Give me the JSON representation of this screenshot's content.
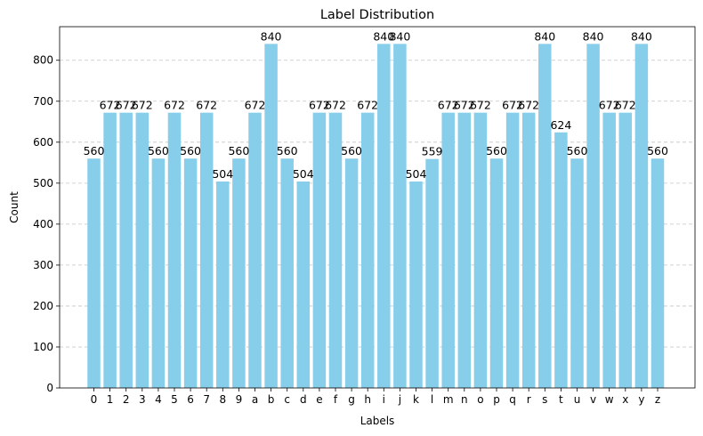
{
  "chart_data": {
    "type": "bar",
    "title": "Label Distribution",
    "xlabel": "Labels",
    "ylabel": "Count",
    "ylim": [
      0,
      882
    ],
    "yticks": [
      0,
      100,
      200,
      300,
      400,
      500,
      600,
      700,
      800
    ],
    "grid": "y-dashed",
    "bar_color": "#87CEEB",
    "grid_color": "#c4c4c4",
    "categories": [
      "0",
      "1",
      "2",
      "3",
      "4",
      "5",
      "6",
      "7",
      "8",
      "9",
      "a",
      "b",
      "c",
      "d",
      "e",
      "f",
      "g",
      "h",
      "i",
      "j",
      "k",
      "l",
      "m",
      "n",
      "o",
      "p",
      "q",
      "r",
      "s",
      "t",
      "u",
      "v",
      "w",
      "x",
      "y",
      "z"
    ],
    "values": [
      560,
      672,
      672,
      672,
      560,
      672,
      560,
      672,
      504,
      560,
      672,
      840,
      560,
      504,
      672,
      672,
      560,
      672,
      840,
      840,
      504,
      559,
      672,
      672,
      672,
      560,
      672,
      672,
      840,
      624,
      560,
      840,
      672,
      672,
      840,
      560
    ]
  }
}
